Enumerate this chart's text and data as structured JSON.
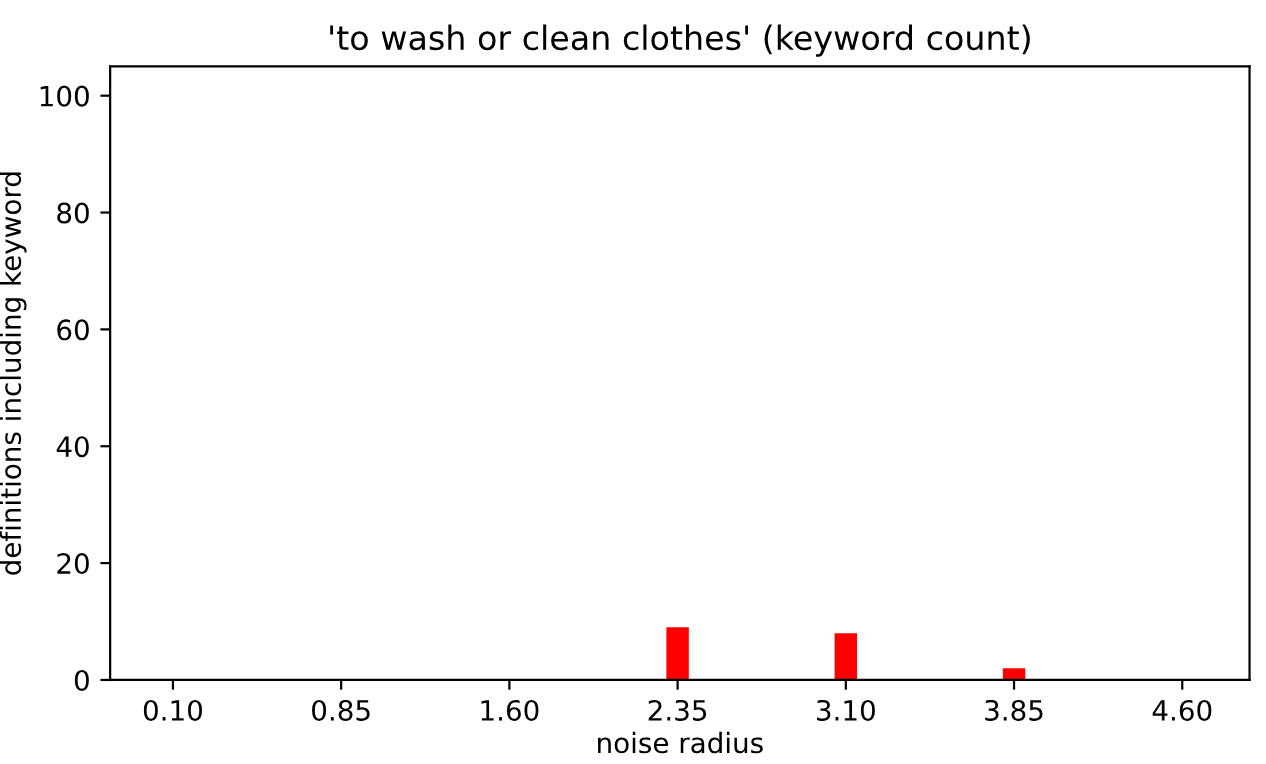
{
  "chart_data": {
    "type": "bar",
    "title": "'to wash or clean clothes' (keyword count)",
    "xlabel": "noise radius",
    "ylabel": "definitions including keyword",
    "x": [
      2.35,
      3.1,
      3.85
    ],
    "series": [
      {
        "color": "#ff0000",
        "values": [
          9,
          8,
          2
        ]
      }
    ],
    "xlim": [
      -0.18,
      4.9
    ],
    "xticks": [
      {
        "value": 0.1,
        "label": "0.10"
      },
      {
        "value": 0.85,
        "label": "0.85"
      },
      {
        "value": 1.6,
        "label": "1.60"
      },
      {
        "value": 2.35,
        "label": "2.35"
      },
      {
        "value": 3.1,
        "label": "3.10"
      },
      {
        "value": 3.85,
        "label": "3.85"
      },
      {
        "value": 4.6,
        "label": "4.60"
      }
    ],
    "ylim": [
      0,
      105
    ],
    "yticks": [
      0,
      20,
      40,
      60,
      80,
      100
    ],
    "grid": false,
    "legend": false
  }
}
